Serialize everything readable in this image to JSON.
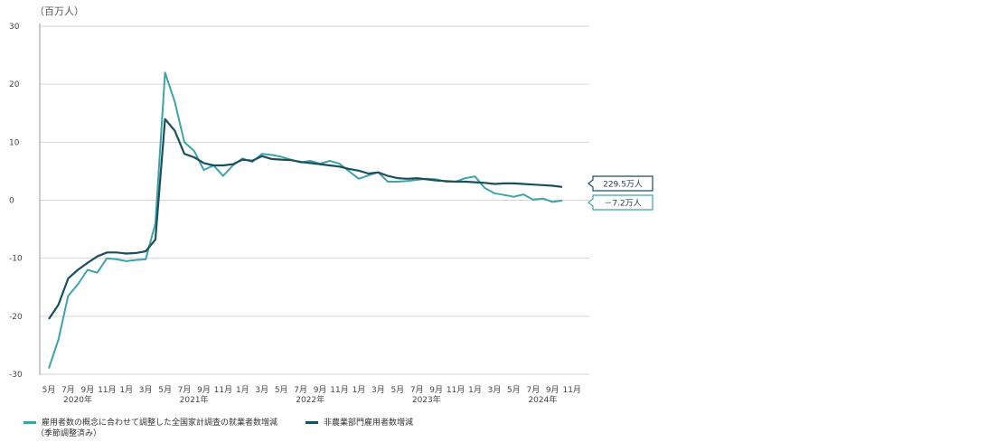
{
  "chart_data": {
    "type": "line",
    "unit_label": "（百万人）",
    "ylim": [
      -30,
      30
    ],
    "yticks": [
      30,
      20,
      10,
      0,
      -10,
      -20,
      -30
    ],
    "x_month_labels": [
      "5月",
      "7月",
      "9月",
      "11月",
      "1月",
      "3月",
      "5月",
      "7月",
      "9月",
      "11月",
      "1月",
      "3月",
      "5月",
      "7月",
      "9月",
      "11月",
      "1月",
      "3月",
      "5月",
      "7月",
      "9月",
      "11月",
      "1月",
      "3月",
      "5月",
      "7月",
      "9月",
      "11月"
    ],
    "x_year_labels": [
      {
        "at": "5月",
        "text": "2020年"
      },
      {
        "at": "5月",
        "text": "2021年"
      },
      {
        "at": "5月",
        "text": "2022年"
      },
      {
        "at": "5月",
        "text": "2023年"
      },
      {
        "at": "5月",
        "text": "2024年"
      }
    ],
    "series": [
      {
        "name": "雇用者数の概念に合わせて調整した全国家計調査の就業者数増減（季節調整済み）",
        "color": "#3ea3a8",
        "values": [
          -29,
          -24,
          -16.5,
          -14.5,
          -12,
          -12.5,
          -10,
          -10.2,
          -10.5,
          -10.3,
          -10.2,
          -4,
          22,
          17,
          10,
          8.5,
          5.2,
          6,
          4.2,
          6,
          7.2,
          6.6,
          8,
          7.8,
          7.5,
          7,
          6.5,
          6.8,
          6.3,
          6.8,
          6.3,
          5,
          3.7,
          4.3,
          4.8,
          3.2,
          3.2,
          3.3,
          3.5,
          3.7,
          3.6,
          3.2,
          3.2,
          3.8,
          4.1,
          2.1,
          1.2,
          0.9,
          0.6,
          1,
          0.1,
          0.3,
          -0.3,
          -0.07
        ],
        "end_label": "－7.2万人"
      },
      {
        "name": "非農業部門雇用者数増減",
        "color": "#1b4f5c",
        "values": [
          -20.5,
          -18,
          -13.5,
          -12,
          -10.8,
          -9.7,
          -9,
          -9,
          -9.2,
          -9.1,
          -8.8,
          -6.8,
          14,
          12,
          8,
          7.4,
          6.4,
          6,
          6,
          6.2,
          7,
          6.8,
          7.6,
          7.1,
          7,
          6.9,
          6.6,
          6.4,
          6.2,
          6,
          5.8,
          5.4,
          5.1,
          4.6,
          4.8,
          4.2,
          3.8,
          3.7,
          3.8,
          3.6,
          3.4,
          3.3,
          3.2,
          3.2,
          3.1,
          3,
          2.8,
          2.9,
          2.9,
          2.8,
          2.7,
          2.6,
          2.5,
          2.295
        ],
        "end_label": "229.5万人"
      }
    ]
  }
}
